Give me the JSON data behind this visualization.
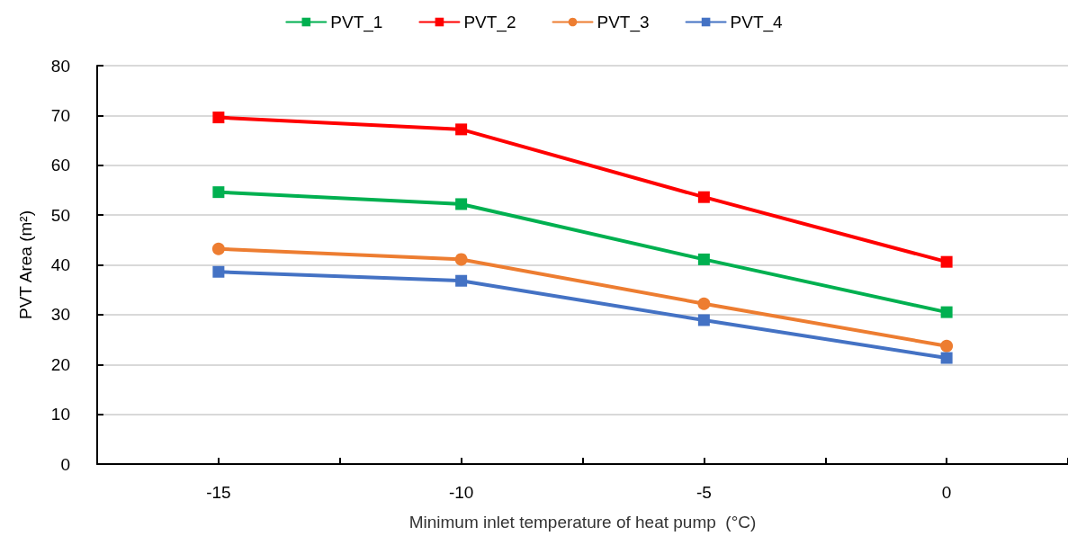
{
  "chart_data": {
    "type": "line",
    "xlabel": "Minimum inlet temperature of heat pump  (°C)",
    "ylabel": "PVT Area (m²)",
    "x": [
      -15,
      -10,
      -5,
      0
    ],
    "series": [
      {
        "name": "PVT_1",
        "color": "#00b050",
        "marker": "square",
        "values": [
          54.6,
          52.2,
          41.1,
          30.5
        ]
      },
      {
        "name": "PVT_2",
        "color": "#ff0000",
        "marker": "square",
        "values": [
          69.6,
          67.2,
          53.6,
          40.6
        ]
      },
      {
        "name": "PVT_3",
        "color": "#ed7d31",
        "marker": "circle",
        "values": [
          43.2,
          41.1,
          32.2,
          23.7
        ]
      },
      {
        "name": "PVT_4",
        "color": "#4472c4",
        "marker": "square",
        "values": [
          38.6,
          36.8,
          28.9,
          21.3
        ]
      }
    ],
    "xlim": [
      -17.5,
      2.5
    ],
    "xticks": [
      {
        "value": -17.5,
        "label": null
      },
      -15,
      {
        "value": -12.5,
        "label": null
      },
      -10,
      {
        "value": -7.5,
        "label": null
      },
      -5,
      {
        "value": -2.5,
        "label": null
      },
      0,
      {
        "value": 2.5,
        "label": null
      }
    ],
    "ylim": [
      0,
      80
    ],
    "yticks": [
      0,
      10,
      20,
      30,
      40,
      50,
      60,
      70,
      80
    ],
    "grid": "y",
    "legend": "top",
    "line_style": "solid"
  }
}
